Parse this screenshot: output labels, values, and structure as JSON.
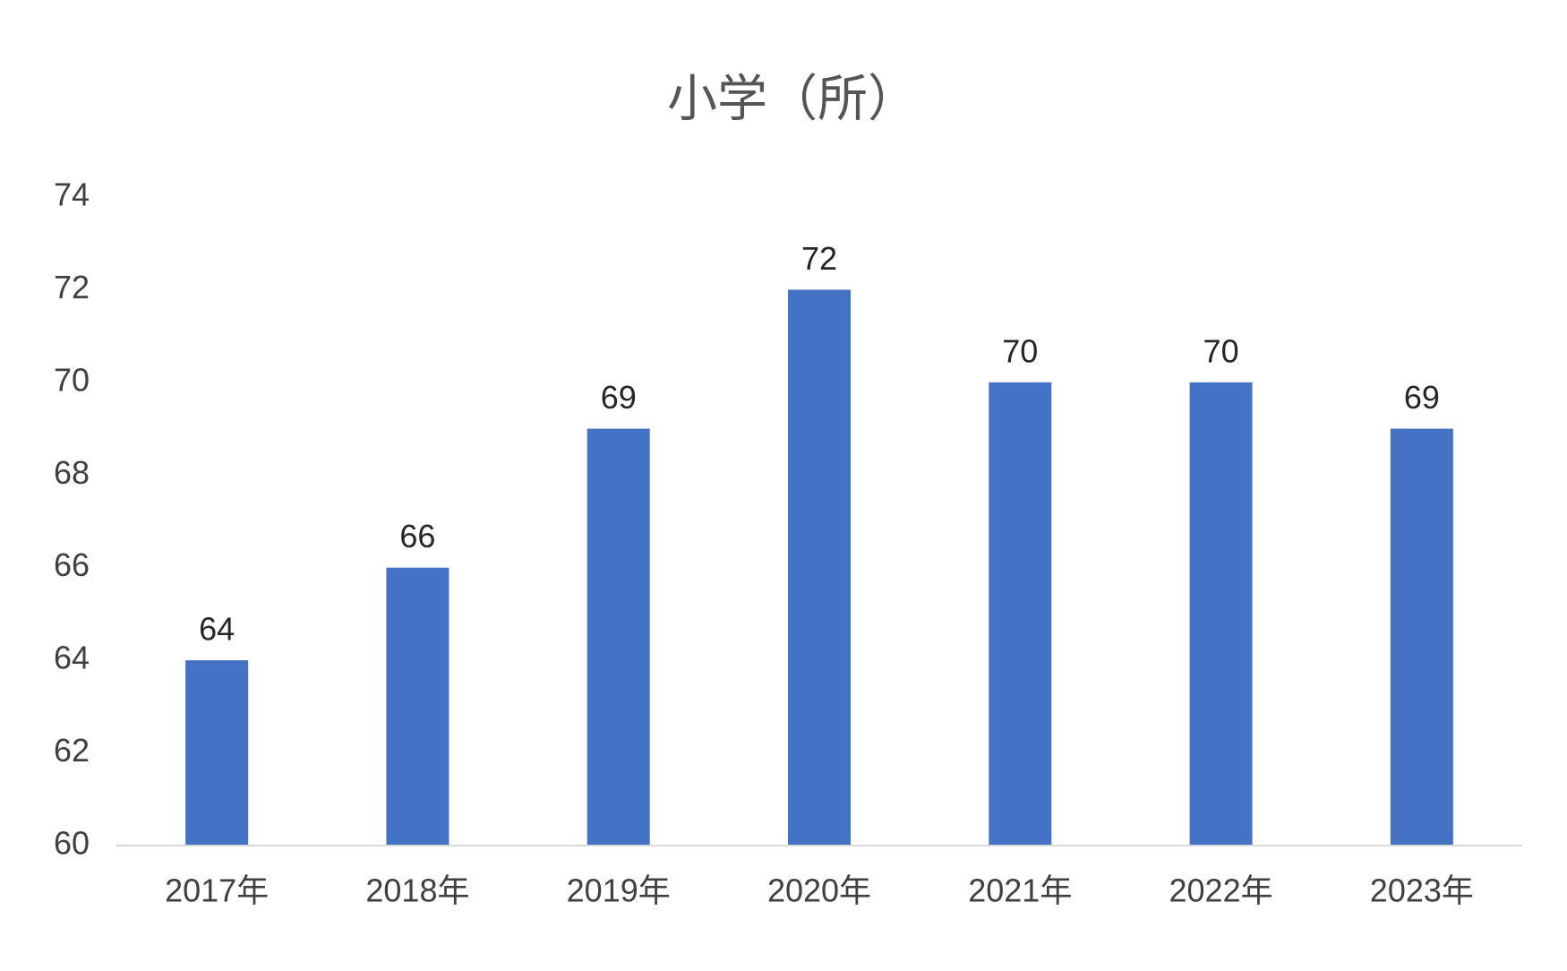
{
  "chart_data": {
    "type": "bar",
    "title": "小学（所）",
    "categories": [
      "2017年",
      "2018年",
      "2019年",
      "2020年",
      "2021年",
      "2022年",
      "2023年"
    ],
    "values": [
      64,
      66,
      69,
      72,
      70,
      70,
      69
    ],
    "color": "#4472c4",
    "ylim": [
      60,
      74
    ],
    "yticks": [
      60,
      62,
      64,
      66,
      68,
      70,
      72,
      74
    ],
    "grid": false
  }
}
